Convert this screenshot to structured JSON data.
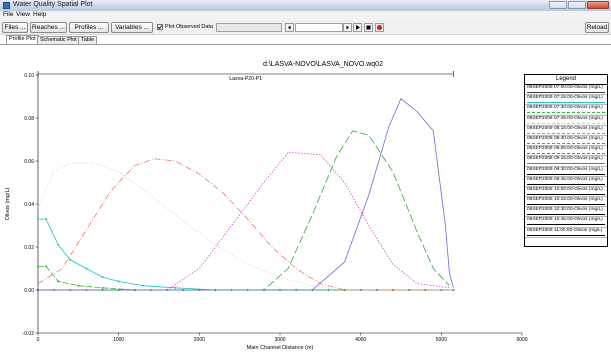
{
  "window": {
    "title": "Water Quality Spatial Plot"
  },
  "menu": [
    "File",
    "View",
    "Help"
  ],
  "toolbar": {
    "files": "Files ...",
    "reaches": "Reaches ...",
    "profiles": "Profiles ...",
    "variables": "Variables ...",
    "plot_observed_label": "Plot Observed Data",
    "plot_observed_checked": true,
    "reload": "Reload"
  },
  "tabs": [
    {
      "label": "Profile Plot",
      "active": true
    },
    {
      "label": "Schematic Plot",
      "active": false
    },
    {
      "label": "Table",
      "active": false
    }
  ],
  "chart_data": {
    "type": "line",
    "title": "d:\\LASVA-NOVO\\LASVA_NOVO.wq02",
    "reach_label": "Lasva-P20-P1",
    "xlabel": "Main Channel Distance (m)",
    "ylabel": "Olivos (mg/L)",
    "xlim": [
      0,
      6000
    ],
    "ylim": [
      -0.02,
      0.1
    ],
    "xticks": [
      "0",
      "1000",
      "2000",
      "3000",
      "4000",
      "5000",
      "6000"
    ],
    "yticks": [
      "-0.02",
      "0.00",
      "0.02",
      "0.04",
      "0.06",
      "0.08",
      "0.10"
    ],
    "legend_title": "Legend",
    "series": [
      {
        "name": "09SEP2009 07:00:00-Olivos (mg/L)",
        "color": "#3d3d3d",
        "dash": "",
        "marker": true,
        "points": [
          [
            0,
            0.0
          ],
          [
            5150,
            0.0
          ]
        ]
      },
      {
        "name": "09SEP2009 07:15:00-Olivos (mg/L)",
        "color": "#22c4c4",
        "dash": "",
        "marker": true,
        "points": [
          [
            0,
            0.033
          ],
          [
            100,
            0.033
          ],
          [
            250,
            0.021
          ],
          [
            400,
            0.014
          ],
          [
            600,
            0.01
          ],
          [
            800,
            0.006
          ],
          [
            1000,
            0.004
          ],
          [
            1300,
            0.002
          ],
          [
            1700,
            0.001
          ],
          [
            2200,
            0.0
          ],
          [
            5150,
            0.0
          ]
        ]
      },
      {
        "name": "09SEP2009 07:30:00-Olivos (mg/L)",
        "color": "#33bb33",
        "dash": "6,2",
        "marker": true,
        "points": [
          [
            0,
            0.011
          ],
          [
            100,
            0.011
          ],
          [
            250,
            0.004
          ],
          [
            500,
            0.002
          ],
          [
            800,
            0.001
          ],
          [
            1200,
            0.0
          ],
          [
            5150,
            0.0
          ]
        ]
      },
      {
        "name": "09SEP2009 07:45:00-Olivos (mg/L)",
        "color": "#c8c8c8",
        "dash": "1,2",
        "marker": false,
        "points": [
          [
            0,
            0.038
          ],
          [
            200,
            0.055
          ],
          [
            400,
            0.059
          ],
          [
            700,
            0.059
          ],
          [
            1000,
            0.055
          ],
          [
            1400,
            0.044
          ],
          [
            1800,
            0.032
          ],
          [
            2200,
            0.021
          ],
          [
            2600,
            0.012
          ],
          [
            3000,
            0.006
          ],
          [
            3400,
            0.002
          ],
          [
            3800,
            0.0
          ],
          [
            5150,
            0.0
          ]
        ]
      },
      {
        "name": "09SEP2009 08:15:00-Olivos (mg/L)",
        "color": "#ee7766",
        "dash": "6,2,1,2",
        "marker": false,
        "points": [
          [
            0,
            0.003
          ],
          [
            300,
            0.01
          ],
          [
            600,
            0.028
          ],
          [
            900,
            0.046
          ],
          [
            1200,
            0.058
          ],
          [
            1450,
            0.061
          ],
          [
            1700,
            0.06
          ],
          [
            2000,
            0.054
          ],
          [
            2300,
            0.045
          ],
          [
            2600,
            0.033
          ],
          [
            2900,
            0.02
          ],
          [
            3200,
            0.01
          ],
          [
            3500,
            0.003
          ],
          [
            3800,
            0.0
          ],
          [
            5150,
            0.0
          ]
        ]
      },
      {
        "name": "09SEP2009 08:30:00-Olivos (mg/L)",
        "color": "#e040e0",
        "dash": "1.5,1.5",
        "marker": false,
        "points": [
          [
            0,
            0.0
          ],
          [
            1600,
            0.0
          ],
          [
            2000,
            0.01
          ],
          [
            2400,
            0.03
          ],
          [
            2800,
            0.05
          ],
          [
            3100,
            0.064
          ],
          [
            3500,
            0.063
          ],
          [
            3800,
            0.05
          ],
          [
            4100,
            0.03
          ],
          [
            4400,
            0.012
          ],
          [
            4700,
            0.003
          ],
          [
            5100,
            0.001
          ]
        ]
      },
      {
        "name": "09SEP2009 09:00:00-Olivos (mg/L)",
        "color": "#33aa33",
        "dash": "8,3",
        "marker": false,
        "points": [
          [
            0,
            0.0
          ],
          [
            2800,
            0.0
          ],
          [
            3100,
            0.01
          ],
          [
            3400,
            0.035
          ],
          [
            3700,
            0.062
          ],
          [
            3900,
            0.074
          ],
          [
            4100,
            0.072
          ],
          [
            4400,
            0.055
          ],
          [
            4700,
            0.027
          ],
          [
            4900,
            0.01
          ],
          [
            5100,
            0.002
          ]
        ]
      },
      {
        "name": "09SEP2009 09:15:00-Olivos (mg/L)",
        "color": "#6b6bdd",
        "dash": "",
        "marker": false,
        "points": [
          [
            0,
            0.0
          ],
          [
            3400,
            0.0
          ],
          [
            3800,
            0.013
          ],
          [
            4100,
            0.044
          ],
          [
            4350,
            0.076
          ],
          [
            4500,
            0.089
          ],
          [
            4700,
            0.083
          ],
          [
            4900,
            0.074
          ],
          [
            5050,
            0.03
          ],
          [
            5100,
            0.008
          ],
          [
            5150,
            0.001
          ]
        ]
      },
      {
        "name": "09SEP2009 09:30:00-Olivos (mg/L)",
        "color": "#000000",
        "dash": "",
        "marker": false,
        "points": []
      },
      {
        "name": "09SEP2009 09:45:00-Olivos (mg/L)",
        "color": "#000000",
        "dash": "",
        "marker": false,
        "points": []
      },
      {
        "name": "09SEP2009 10:00:00-Olivos (mg/L)",
        "color": "#000000",
        "dash": "",
        "marker": false,
        "points": []
      },
      {
        "name": "09SEP2009 10:15:00-Olivos (mg/L)",
        "color": "#000000",
        "dash": "",
        "marker": false,
        "points": []
      },
      {
        "name": "09SEP2009 10:30:00-Olivos (mg/L)",
        "color": "#000000",
        "dash": "",
        "marker": false,
        "points": []
      },
      {
        "name": "09SEP2009 10:45:00-Olivos (mg/L)",
        "color": "#000000",
        "dash": "",
        "marker": false,
        "points": []
      },
      {
        "name": "09SEP2009 11:00:00-Olivos (mg/L)",
        "color": "#000000",
        "dash": "",
        "marker": false,
        "points": []
      }
    ]
  }
}
